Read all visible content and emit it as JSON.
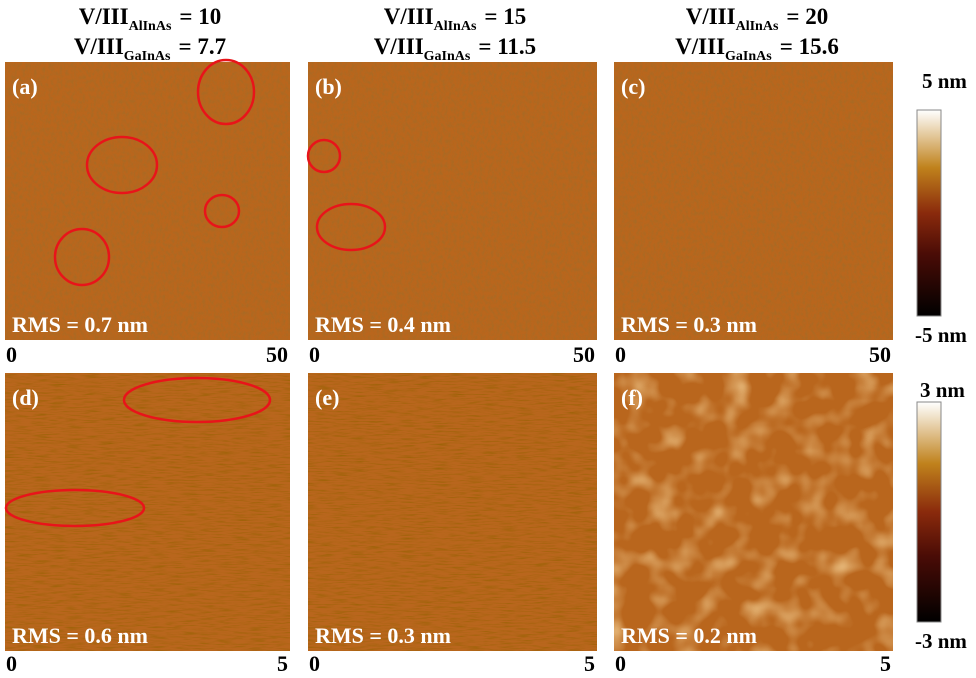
{
  "columns": [
    {
      "line1": {
        "main": "V/III",
        "sub": "AlInAs",
        "rest": "= 10"
      },
      "line2": {
        "main": "V/III",
        "sub": "GaInAs",
        "rest": "= 7.7"
      }
    },
    {
      "line1": {
        "main": "V/III",
        "sub": "AlInAs",
        "rest": "= 15"
      },
      "line2": {
        "main": "V/III",
        "sub": "GaInAs",
        "rest": "= 11.5"
      }
    },
    {
      "line1": {
        "main": "V/III",
        "sub": "AlInAs",
        "rest": "= 20"
      },
      "line2": {
        "main": "V/III",
        "sub": "GaInAs",
        "rest": "= 15.6"
      }
    }
  ],
  "panels": [
    {
      "label": "(a)",
      "rms": "RMS = 0.7 nm"
    },
    {
      "label": "(b)",
      "rms": "RMS = 0.4 nm"
    },
    {
      "label": "(c)",
      "rms": "RMS = 0.3 nm"
    },
    {
      "label": "(d)",
      "rms": "RMS = 0.6 nm"
    },
    {
      "label": "(e)",
      "rms": "RMS = 0.3 nm"
    },
    {
      "label": "(f)",
      "rms": "RMS = 0.2 nm"
    }
  ],
  "row_axes": [
    {
      "start": "0",
      "end": "50"
    },
    {
      "start": "0",
      "end": "5"
    }
  ],
  "colorbars": [
    {
      "max": "5 nm",
      "min": "-5 nm"
    },
    {
      "max": "3 nm",
      "min": "-3 nm"
    }
  ]
}
